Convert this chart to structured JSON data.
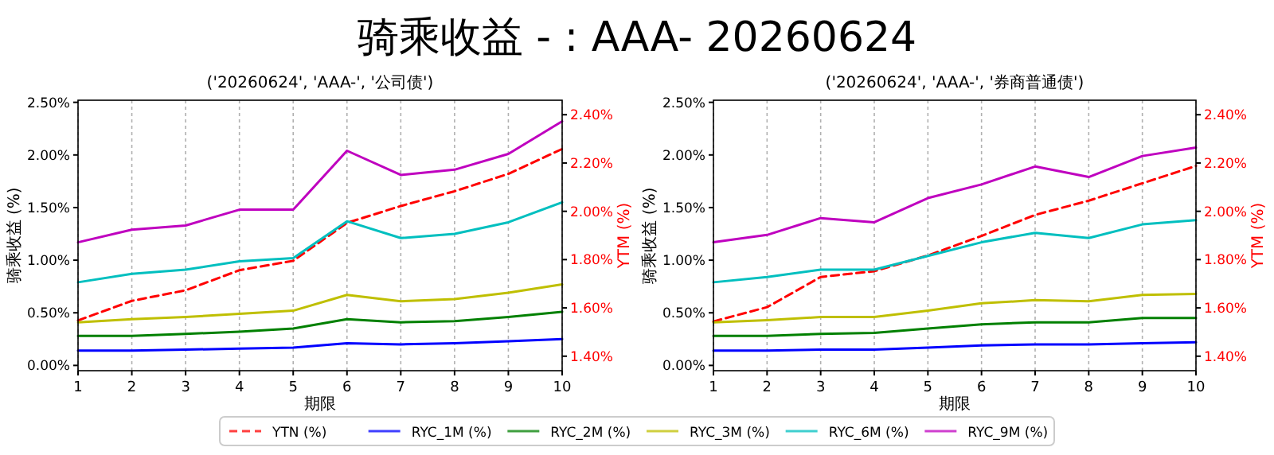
{
  "chart_data": [
    {
      "type": "line",
      "title": "骑乘收益 - : AAA- 20260624",
      "subtitle": "('20260624', 'AAA-', '公司债')",
      "xlabel": "期限",
      "ylabel": "骑乘收益 (%)",
      "y2label": "YTM (%)",
      "x": [
        1,
        2,
        3,
        4,
        5,
        6,
        7,
        8,
        9,
        10
      ],
      "xlim": [
        1,
        10
      ],
      "xticks": [
        1,
        2,
        3,
        4,
        5,
        6,
        7,
        8,
        9,
        10
      ],
      "ylim": [
        -0.05,
        2.52
      ],
      "yticks": [
        {
          "value": 0,
          "label": "0.00%"
        },
        {
          "value": 0.5,
          "label": "0.50%"
        },
        {
          "value": 1,
          "label": "1.00%"
        },
        {
          "value": 1.5,
          "label": "1.50%"
        },
        {
          "value": 2,
          "label": "2.00%"
        },
        {
          "value": 2.5,
          "label": "2.50%"
        }
      ],
      "y2lim": [
        1.34,
        2.46
      ],
      "y2ticks": [
        {
          "value": 1.4,
          "label": "1.40%"
        },
        {
          "value": 1.6,
          "label": "1.60%"
        },
        {
          "value": 1.8,
          "label": "1.80%"
        },
        {
          "value": 2,
          "label": "2.00%"
        },
        {
          "value": 2.2,
          "label": "2.20%"
        },
        {
          "value": 2.4,
          "label": "2.40%"
        }
      ],
      "grid": "x",
      "legend": "bottom",
      "series": [
        {
          "name": "YTN (%)",
          "color": "#ff0000",
          "axis": "y2",
          "line_style": "dashed",
          "values": [
            1.548,
            1.629,
            1.673,
            1.756,
            1.795,
            1.952,
            2.022,
            2.083,
            2.155,
            2.258
          ]
        },
        {
          "name": "RYC_1M (%)",
          "color": "#0000ff",
          "values": [
            0.14,
            0.14,
            0.15,
            0.16,
            0.17,
            0.21,
            0.2,
            0.21,
            0.23,
            0.25
          ]
        },
        {
          "name": "RYC_2M (%)",
          "color": "#008000",
          "values": [
            0.28,
            0.28,
            0.3,
            0.32,
            0.35,
            0.44,
            0.41,
            0.42,
            0.46,
            0.51
          ]
        },
        {
          "name": "RYC_3M (%)",
          "color": "#bfbf00",
          "values": [
            0.41,
            0.44,
            0.46,
            0.49,
            0.52,
            0.67,
            0.61,
            0.63,
            0.69,
            0.77
          ]
        },
        {
          "name": "RYC_6M (%)",
          "color": "#00bfbf",
          "values": [
            0.79,
            0.87,
            0.91,
            0.99,
            1.02,
            1.37,
            1.21,
            1.25,
            1.36,
            1.55
          ]
        },
        {
          "name": "RYC_9M (%)",
          "color": "#bf00bf",
          "values": [
            1.17,
            1.29,
            1.33,
            1.48,
            1.48,
            2.04,
            1.81,
            1.86,
            2.01,
            2.32
          ]
        }
      ]
    },
    {
      "type": "line",
      "subtitle": "('20260624', 'AAA-', '券商普通债')",
      "xlabel": "期限",
      "ylabel": "骑乘收益 (%)",
      "y2label": "YTM (%)",
      "x": [
        1,
        2,
        3,
        4,
        5,
        6,
        7,
        8,
        9,
        10
      ],
      "xlim": [
        1,
        10
      ],
      "xticks": [
        1,
        2,
        3,
        4,
        5,
        6,
        7,
        8,
        9,
        10
      ],
      "ylim": [
        -0.05,
        2.52
      ],
      "yticks": [
        {
          "value": 0,
          "label": "0.00%"
        },
        {
          "value": 0.5,
          "label": "0.50%"
        },
        {
          "value": 1,
          "label": "1.00%"
        },
        {
          "value": 1.5,
          "label": "1.50%"
        },
        {
          "value": 2,
          "label": "2.00%"
        },
        {
          "value": 2.5,
          "label": "2.50%"
        }
      ],
      "y2lim": [
        1.34,
        2.46
      ],
      "y2ticks": [
        {
          "value": 1.4,
          "label": "1.40%"
        },
        {
          "value": 1.6,
          "label": "1.60%"
        },
        {
          "value": 1.8,
          "label": "1.80%"
        },
        {
          "value": 2,
          "label": "2.00%"
        },
        {
          "value": 2.2,
          "label": "2.20%"
        },
        {
          "value": 2.4,
          "label": "2.40%"
        }
      ],
      "grid": "x",
      "series": [
        {
          "name": "YTN (%)",
          "color": "#ff0000",
          "axis": "y2",
          "line_style": "dashed",
          "values": [
            1.544,
            1.603,
            1.728,
            1.752,
            1.817,
            1.898,
            1.985,
            2.044,
            2.116,
            2.188
          ]
        },
        {
          "name": "RYC_1M (%)",
          "color": "#0000ff",
          "values": [
            0.14,
            0.14,
            0.15,
            0.15,
            0.17,
            0.19,
            0.2,
            0.2,
            0.21,
            0.22
          ]
        },
        {
          "name": "RYC_2M (%)",
          "color": "#008000",
          "values": [
            0.28,
            0.28,
            0.3,
            0.31,
            0.35,
            0.39,
            0.41,
            0.41,
            0.45,
            0.45
          ]
        },
        {
          "name": "RYC_3M (%)",
          "color": "#bfbf00",
          "values": [
            0.41,
            0.43,
            0.46,
            0.46,
            0.52,
            0.59,
            0.62,
            0.61,
            0.67,
            0.68
          ]
        },
        {
          "name": "RYC_6M (%)",
          "color": "#00bfbf",
          "values": [
            0.79,
            0.84,
            0.91,
            0.91,
            1.04,
            1.17,
            1.26,
            1.21,
            1.34,
            1.38
          ]
        },
        {
          "name": "RYC_9M (%)",
          "color": "#bf00bf",
          "values": [
            1.17,
            1.24,
            1.4,
            1.36,
            1.59,
            1.72,
            1.89,
            1.79,
            1.99,
            2.07
          ]
        }
      ]
    }
  ]
}
